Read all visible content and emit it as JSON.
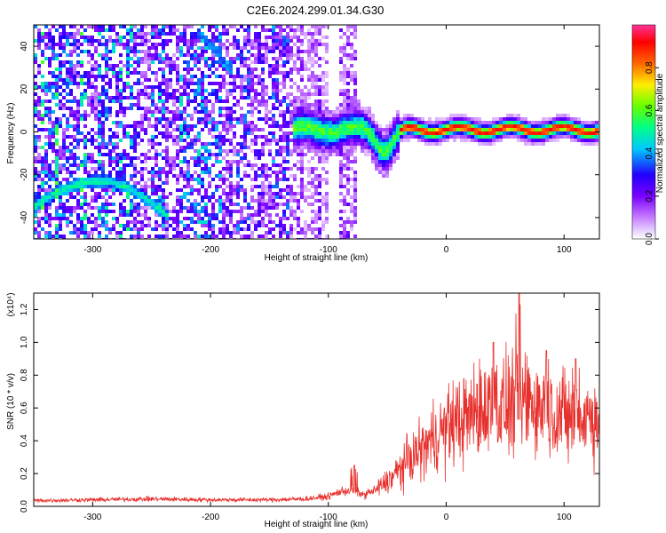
{
  "title": "C2E6.2024.299.01.34.G30",
  "chart_data": [
    {
      "type": "heatmap",
      "xlabel": "Height of straight line (km)",
      "ylabel": "Frequency (Hz)",
      "xlim": [
        -350,
        130
      ],
      "ylim": [
        -50,
        50
      ],
      "x_ticks": [
        -300,
        -200,
        -100,
        0,
        100
      ],
      "y_ticks": [
        -40,
        -20,
        0,
        20,
        40
      ],
      "colorbar": {
        "label": "Normalized spectral amplitude",
        "range": [
          0,
          1
        ],
        "ticks": [
          0.0,
          0.2,
          0.4,
          0.6,
          0.8
        ],
        "tick_labels": [
          "0.0",
          "0.2",
          "0.4",
          "0.6",
          "0.8"
        ],
        "colors": [
          "#ffffff",
          "#c77dff",
          "#7b00ff",
          "#2200ff",
          "#00c8ff",
          "#00ff88",
          "#66ff00",
          "#ffee00",
          "#ff6600",
          "#ff0000",
          "#ff3399"
        ]
      },
      "features": [
        {
          "name": "arc",
          "x_range": [
            -350,
            -235
          ],
          "peak_x": -290,
          "peak_y": -23,
          "end_y": -40
        },
        {
          "name": "upper streak",
          "x_range": [
            -210,
            -180
          ],
          "y_range": [
            46,
            28
          ]
        },
        {
          "name": "main band",
          "x_range": [
            -130,
            130
          ],
          "center_y": 1
        },
        {
          "name": "dip",
          "x": -52,
          "y": -8
        }
      ]
    },
    {
      "type": "line",
      "xlabel": "Height of straight line (km)",
      "ylabel": "SNR (10 * v/v)",
      "y_multiplier": "(x10⁴)",
      "xlim": [
        -350,
        130
      ],
      "ylim": [
        0,
        1.3
      ],
      "x_ticks": [
        -300,
        -200,
        -100,
        0,
        100
      ],
      "y_ticks": [
        0.0,
        0.2,
        0.4,
        0.6,
        0.8,
        1.0,
        1.2
      ],
      "series": [
        {
          "color": "#e8302c",
          "x": [
            -350,
            -300,
            -250,
            -200,
            -150,
            -120,
            -100,
            -90,
            -80,
            -70,
            -60,
            -50,
            -40,
            -30,
            -20,
            -10,
            0,
            10,
            20,
            30,
            40,
            50,
            60,
            70,
            80,
            90,
            100,
            110,
            120,
            130
          ],
          "y": [
            0.035,
            0.04,
            0.045,
            0.04,
            0.04,
            0.045,
            0.06,
            0.09,
            0.1,
            0.07,
            0.1,
            0.15,
            0.22,
            0.3,
            0.35,
            0.42,
            0.48,
            0.52,
            0.55,
            0.6,
            0.62,
            0.6,
            0.64,
            0.66,
            0.6,
            0.58,
            0.55,
            0.52,
            0.55,
            0.55
          ],
          "peaks": [
            [
              -78,
              0.25
            ],
            [
              40,
              1.0
            ],
            [
              62,
              1.3
            ],
            [
              85,
              0.95
            ],
            [
              110,
              0.9
            ]
          ]
        }
      ]
    }
  ]
}
